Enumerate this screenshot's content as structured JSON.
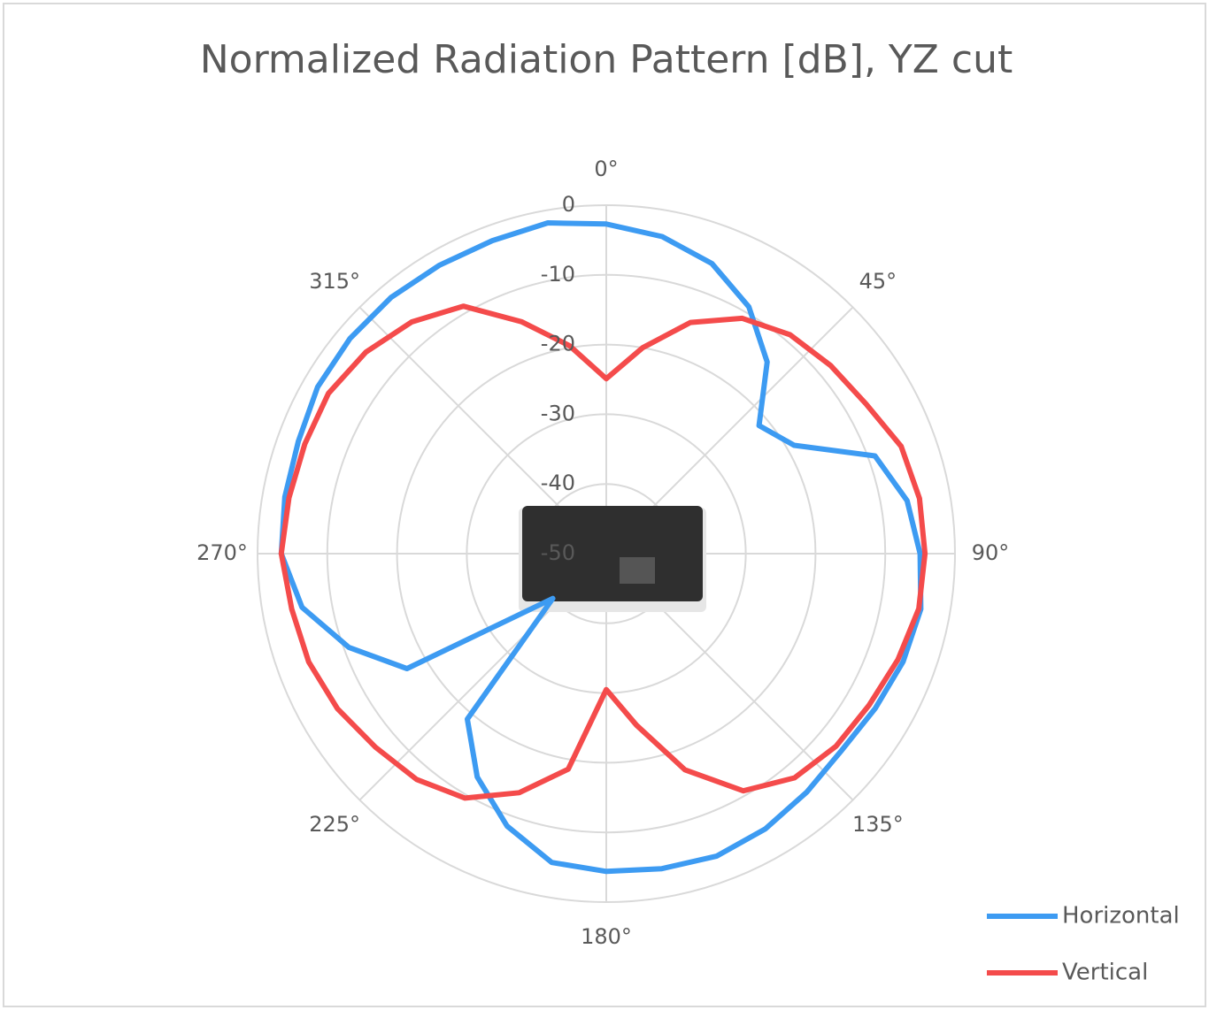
{
  "chart_data": {
    "type": "polar",
    "title": "Normalized Radiation Pattern [dB], YZ cut",
    "x": [
      0,
      10,
      20,
      30,
      40,
      50,
      60,
      70,
      80,
      90,
      100,
      110,
      120,
      130,
      140,
      150,
      160,
      170,
      180,
      190,
      200,
      210,
      220,
      230,
      240,
      250,
      260,
      270,
      280,
      290,
      300,
      310,
      320,
      330,
      340,
      350
    ],
    "xticks": [
      {
        "value": 0,
        "label": "0°"
      },
      {
        "value": 45,
        "label": "45°"
      },
      {
        "value": 90,
        "label": "90°"
      },
      {
        "value": 135,
        "label": "135°"
      },
      {
        "value": 180,
        "label": "180°"
      },
      {
        "value": 225,
        "label": "225°"
      },
      {
        "value": 270,
        "label": "270°"
      },
      {
        "value": 315,
        "label": "315°"
      }
    ],
    "ylim": [
      -50,
      0
    ],
    "yticks": [
      -50,
      -40,
      -30,
      -20,
      -10,
      0
    ],
    "grid": true,
    "legend": "bottom-right",
    "series": [
      {
        "name": "Horizontal",
        "color": "#3d9bf2",
        "values": [
          -2.7,
          -3.8,
          -5.7,
          -9.1,
          -14.1,
          -21.4,
          -18.9,
          -9,
          -6.2,
          -5,
          -4.2,
          -4.7,
          -5.5,
          -6,
          -5.3,
          -4.4,
          -3.8,
          -4.1,
          -4.4,
          -5,
          -8.4,
          -13,
          -19,
          -40,
          -17,
          -10.7,
          -5.7,
          -3.4,
          -3.2,
          -3,
          -2.2,
          -2,
          -2,
          -2.2,
          -2.2,
          -1.8
        ]
      },
      {
        "name": "Vertical",
        "color": "#f44b4b",
        "values": [
          -24.9,
          -20,
          -14.7,
          -11,
          -9,
          -8,
          -7,
          -5,
          -4.4,
          -4.3,
          -4.5,
          -5.5,
          -6.5,
          -7,
          -8,
          -10.7,
          -17,
          -25,
          -30.5,
          -18.6,
          -13.5,
          -9.5,
          -7.7,
          -6.8,
          -5.5,
          -4.6,
          -4.2,
          -3.4,
          -3.8,
          -4,
          -4,
          -5,
          -6.6,
          -9,
          -14.6,
          -19.7
        ]
      }
    ]
  }
}
